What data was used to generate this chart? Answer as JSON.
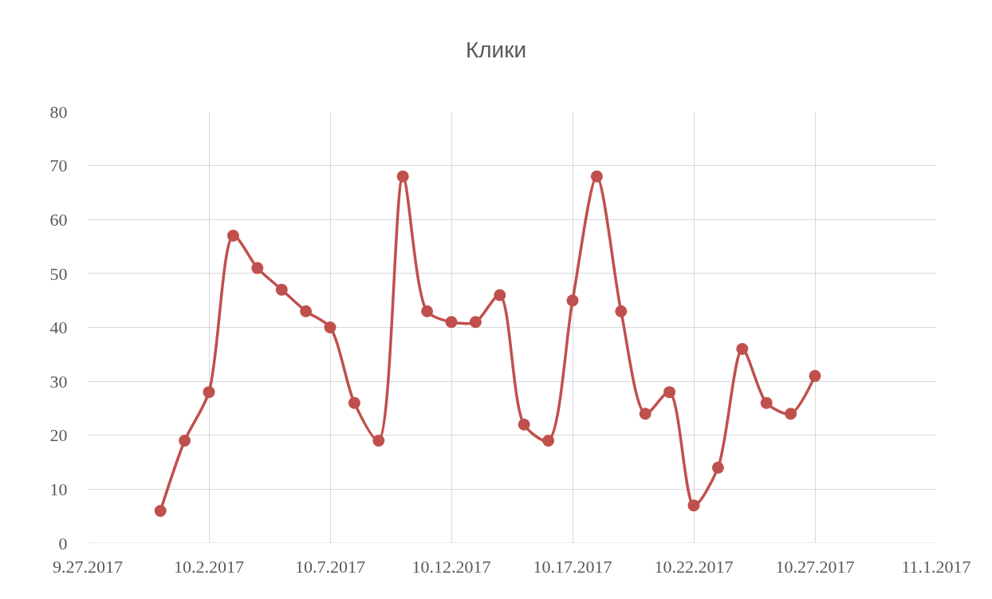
{
  "chart_data": {
    "type": "line",
    "title": "Клики",
    "x": [
      "2017-09-30",
      "2017-10-01",
      "2017-10-02",
      "2017-10-03",
      "2017-10-04",
      "2017-10-05",
      "2017-10-06",
      "2017-10-07",
      "2017-10-08",
      "2017-10-09",
      "2017-10-10",
      "2017-10-11",
      "2017-10-12",
      "2017-10-13",
      "2017-10-14",
      "2017-10-15",
      "2017-10-16",
      "2017-10-17",
      "2017-10-18",
      "2017-10-19",
      "2017-10-20",
      "2017-10-21",
      "2017-10-22",
      "2017-10-23",
      "2017-10-24",
      "2017-10-25",
      "2017-10-26",
      "2017-10-27"
    ],
    "series": [
      {
        "color": "#c0504d",
        "values": [
          6,
          19,
          28,
          57,
          51,
          47,
          43,
          40,
          26,
          19,
          68,
          43,
          41,
          41,
          46,
          22,
          19,
          45,
          68,
          43,
          24,
          28,
          7,
          14,
          36,
          26,
          24,
          31
        ]
      }
    ],
    "xlim": [
      "2017-09-27",
      "2017-11-01"
    ],
    "xticks": [
      {
        "value": "2017-09-27",
        "label": "9.27.2017"
      },
      {
        "value": "2017-10-02",
        "label": "10.2.2017"
      },
      {
        "value": "2017-10-07",
        "label": "10.7.2017"
      },
      {
        "value": "2017-10-12",
        "label": "10.12.2017"
      },
      {
        "value": "2017-10-17",
        "label": "10.17.2017"
      },
      {
        "value": "2017-10-22",
        "label": "10.22.2017"
      },
      {
        "value": "2017-10-27",
        "label": "10.27.2017"
      },
      {
        "value": "2017-11-01",
        "label": "11.1.2017"
      }
    ],
    "ylim": [
      0,
      80
    ],
    "yticks": [
      0,
      10,
      20,
      30,
      40,
      50,
      60,
      70,
      80
    ],
    "grid": true,
    "marker": "circle",
    "line_style": "solid"
  }
}
